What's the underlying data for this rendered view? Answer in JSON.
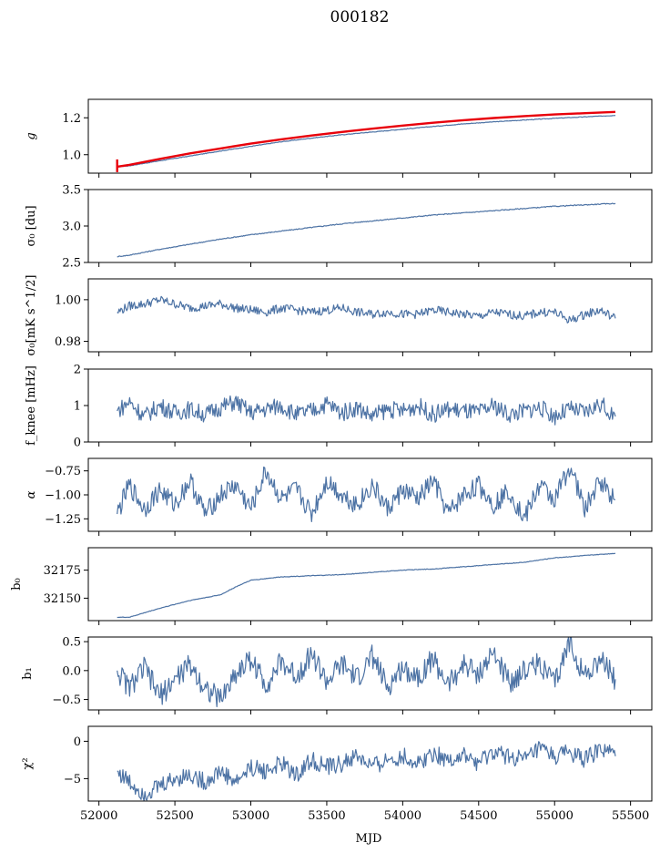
{
  "chart_data": {
    "type": "line",
    "title": "000182",
    "xlabel": "MJD",
    "xlim": [
      51930,
      55640
    ],
    "xticks": [
      52000,
      52500,
      53000,
      53500,
      54000,
      54500,
      55000,
      55500
    ],
    "x_start": 52120,
    "x_end": 55400,
    "colors": {
      "series": "#4c72a4",
      "fit": "#e8000b"
    },
    "panels": [
      {
        "key": "g",
        "ylabel": "g",
        "ylim": [
          0.9,
          1.3
        ],
        "yticks": [
          1.0,
          1.2
        ],
        "ytick_labels": [
          "1.0",
          "1.2"
        ],
        "series": [
          {
            "x": [
              52120,
              52200,
              52400,
              52600,
              52800,
              53000,
              53200,
              53400,
              53600,
              53800,
              54000,
              54200,
              54400,
              54600,
              54800,
              55000,
              55200,
              55400
            ],
            "values": [
              0.935,
              0.94,
              0.967,
              0.993,
              1.02,
              1.045,
              1.07,
              1.09,
              1.108,
              1.123,
              1.138,
              1.153,
              1.167,
              1.178,
              1.188,
              1.197,
              1.205,
              1.213
            ]
          }
        ],
        "fit": {
          "x": [
            52120,
            52200,
            52400,
            52600,
            52800,
            53000,
            53200,
            53400,
            53600,
            53800,
            54000,
            54200,
            54400,
            54600,
            54800,
            55000,
            55200,
            55400
          ],
          "values": [
            0.935,
            0.945,
            0.977,
            1.007,
            1.034,
            1.06,
            1.083,
            1.104,
            1.123,
            1.141,
            1.158,
            1.173,
            1.187,
            1.199,
            1.209,
            1.218,
            1.225,
            1.232
          ]
        }
      },
      {
        "key": "sigma0_du",
        "ylabel": "σ₀ [du]",
        "ylim": [
          2.5,
          3.5
        ],
        "yticks": [
          2.5,
          3.0,
          3.5
        ],
        "ytick_labels": [
          "2.5",
          "3.0",
          "3.5"
        ],
        "series": [
          {
            "x": [
              52120,
              52200,
              52400,
              52600,
              52800,
              53000,
              53200,
              53400,
              53600,
              53800,
              54000,
              54200,
              54400,
              54600,
              54800,
              55000,
              55200,
              55400
            ],
            "values": [
              2.58,
              2.6,
              2.68,
              2.75,
              2.82,
              2.88,
              2.93,
              2.98,
              3.03,
              3.07,
              3.11,
              3.15,
              3.18,
              3.21,
              3.24,
              3.27,
              3.29,
              3.31
            ]
          }
        ]
      },
      {
        "key": "sigma0_mk",
        "ylabel": "σ₀[mK s^1/2]",
        "ylim": [
          0.975,
          1.01
        ],
        "yticks": [
          0.98,
          1.0
        ],
        "ytick_labels": [
          "0.98",
          "1.00"
        ],
        "series": [
          {
            "x": [
              52120,
              52200,
              52300,
              52400,
              52500,
              52600,
              52700,
              52800,
              52900,
              53000,
              53100,
              53200,
              53300,
              53400,
              53500,
              53600,
              53700,
              53800,
              53900,
              54000,
              54100,
              54200,
              54300,
              54400,
              54500,
              54600,
              54700,
              54800,
              54900,
              55000,
              55100,
              55200,
              55300,
              55400
            ],
            "values": [
              0.994,
              0.997,
              0.998,
              1.0,
              0.998,
              0.996,
              0.997,
              0.998,
              0.996,
              0.995,
              0.994,
              0.996,
              0.995,
              0.994,
              0.995,
              0.996,
              0.994,
              0.993,
              0.994,
              0.993,
              0.993,
              0.995,
              0.994,
              0.993,
              0.992,
              0.994,
              0.993,
              0.992,
              0.994,
              0.994,
              0.99,
              0.993,
              0.995,
              0.991
            ]
          }
        ]
      },
      {
        "key": "fknee",
        "ylabel": "f_knee [mHz]",
        "ylim": [
          0,
          2
        ],
        "yticks": [
          0,
          1,
          2
        ],
        "ytick_labels": [
          "0",
          "1",
          "2"
        ],
        "series": [
          {
            "x": [
              52120,
              52200,
              52300,
              52400,
              52500,
              52600,
              52700,
              52800,
              52900,
              53000,
              53100,
              53200,
              53300,
              53400,
              53500,
              53600,
              53700,
              53800,
              53900,
              54000,
              54100,
              54200,
              54300,
              54400,
              54500,
              54600,
              54700,
              54800,
              54900,
              55000,
              55100,
              55200,
              55300,
              55400
            ],
            "values": [
              0.85,
              1.1,
              0.7,
              1.0,
              0.8,
              0.9,
              0.75,
              0.95,
              1.1,
              0.8,
              0.9,
              1.0,
              0.75,
              0.85,
              1.05,
              0.8,
              0.95,
              0.7,
              0.9,
              0.85,
              1.0,
              0.75,
              0.9,
              0.85,
              0.8,
              1.0,
              0.75,
              0.85,
              0.95,
              0.7,
              0.9,
              0.8,
              1.05,
              0.7
            ]
          }
        ]
      },
      {
        "key": "alpha",
        "ylabel": "α",
        "ylim": [
          -1.38,
          -0.62
        ],
        "yticks": [
          -1.25,
          -1.0,
          -0.75
        ],
        "ytick_labels": [
          "−1.25",
          "−1.00",
          "−0.75"
        ],
        "series": [
          {
            "x": [
              52120,
              52200,
              52300,
              52400,
              52500,
              52600,
              52700,
              52800,
              52900,
              53000,
              53100,
              53200,
              53300,
              53400,
              53500,
              53600,
              53700,
              53800,
              53900,
              54000,
              54100,
              54200,
              54300,
              54400,
              54500,
              54600,
              54700,
              54800,
              54900,
              55000,
              55100,
              55200,
              55300,
              55400
            ],
            "values": [
              -1.2,
              -0.9,
              -1.15,
              -0.95,
              -1.1,
              -0.85,
              -1.2,
              -1.0,
              -0.9,
              -1.15,
              -0.75,
              -1.05,
              -0.95,
              -1.2,
              -0.85,
              -1.0,
              -1.1,
              -0.9,
              -1.15,
              -0.95,
              -1.05,
              -0.85,
              -1.2,
              -1.0,
              -0.9,
              -1.1,
              -0.95,
              -1.25,
              -0.9,
              -1.05,
              -0.7,
              -1.15,
              -0.85,
              -1.05
            ]
          }
        ]
      },
      {
        "key": "b0",
        "ylabel": "b₀",
        "ylim": [
          32130,
          32195
        ],
        "yticks": [
          32150,
          32175
        ],
        "ytick_labels": [
          "32150",
          "32175"
        ],
        "series": [
          {
            "x": [
              52120,
              52200,
              52300,
              52400,
              52600,
              52800,
              52900,
              53000,
              53200,
              53400,
              53600,
              53800,
              54000,
              54200,
              54400,
              54600,
              54800,
              55000,
              55200,
              55400
            ],
            "values": [
              32133,
              32133,
              32137,
              32141,
              32148,
              32153,
              32160,
              32166,
              32169,
              32170,
              32171,
              32173,
              32175,
              32176,
              32178,
              32180,
              32182,
              32186,
              32188,
              32190
            ]
          }
        ]
      },
      {
        "key": "b1",
        "ylabel": "b₁",
        "ylim": [
          -0.68,
          0.58
        ],
        "yticks": [
          -0.5,
          0.0,
          0.5
        ],
        "ytick_labels": [
          "−0.5",
          "0.0",
          "0.5"
        ],
        "series": [
          {
            "x": [
              52120,
              52200,
              52300,
              52400,
              52500,
              52600,
              52700,
              52800,
              52900,
              53000,
              53100,
              53200,
              53300,
              53400,
              53500,
              53600,
              53700,
              53800,
              53900,
              54000,
              54100,
              54200,
              54300,
              54400,
              54500,
              54600,
              54700,
              54800,
              54900,
              55000,
              55100,
              55200,
              55300,
              55400
            ],
            "values": [
              0.0,
              -0.3,
              0.05,
              -0.45,
              -0.15,
              0.1,
              -0.3,
              -0.5,
              -0.05,
              0.2,
              -0.25,
              0.15,
              -0.1,
              0.3,
              -0.2,
              0.1,
              -0.15,
              0.25,
              -0.3,
              0.05,
              -0.1,
              0.2,
              -0.25,
              0.1,
              -0.05,
              0.3,
              -0.2,
              0.0,
              0.15,
              -0.25,
              0.5,
              -0.1,
              0.2,
              -0.15
            ]
          }
        ]
      },
      {
        "key": "chi2",
        "ylabel": "χ²",
        "ylim": [
          -8,
          2
        ],
        "yticks": [
          -5,
          0
        ],
        "ytick_labels": [
          "−5",
          "0"
        ],
        "series": [
          {
            "x": [
              52120,
              52200,
              52300,
              52400,
              52500,
              52600,
              52700,
              52800,
              52900,
              53000,
              53100,
              53200,
              53300,
              53400,
              53500,
              53600,
              53700,
              53800,
              53900,
              54000,
              54100,
              54200,
              54300,
              54400,
              54500,
              54600,
              54700,
              54800,
              54900,
              55000,
              55100,
              55200,
              55300,
              55400
            ],
            "values": [
              -4.0,
              -5.5,
              -7.0,
              -6.0,
              -5.0,
              -4.5,
              -5.5,
              -4.0,
              -5.5,
              -3.5,
              -4.0,
              -3.0,
              -4.5,
              -2.5,
              -3.5,
              -3.0,
              -2.0,
              -3.5,
              -2.5,
              -2.0,
              -3.0,
              -1.5,
              -2.5,
              -2.0,
              -3.0,
              -1.5,
              -2.0,
              -2.5,
              -1.0,
              -2.0,
              -1.5,
              -2.5,
              -1.0,
              -2.0
            ]
          }
        ]
      }
    ]
  }
}
